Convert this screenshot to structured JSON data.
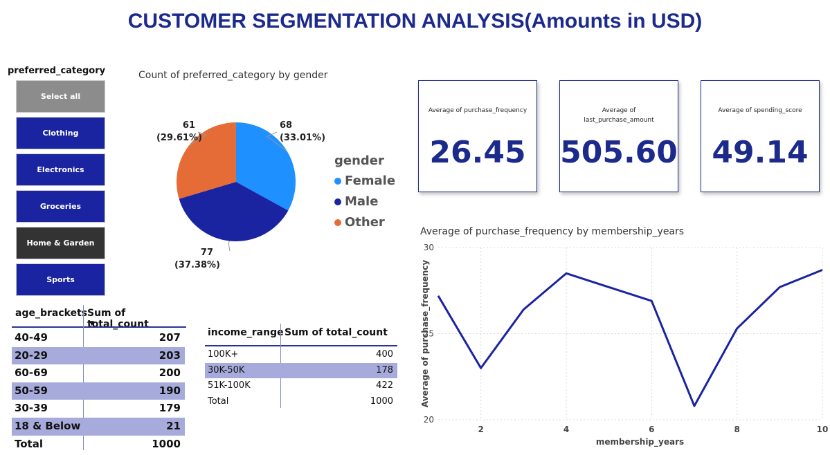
{
  "title": "CUSTOMER SEGMENTATION ANALYSIS(Amounts in USD)",
  "slicer": {
    "title": "preferred_category",
    "items": [
      {
        "label": "Select all",
        "color": "#8c8c8c"
      },
      {
        "label": "Clothing",
        "color": "#1a24a0"
      },
      {
        "label": "Electronics",
        "color": "#1a24a0"
      },
      {
        "label": "Groceries",
        "color": "#1a24a0"
      },
      {
        "label": "Home & Garden",
        "color": "#333333"
      },
      {
        "label": "Sports",
        "color": "#1a24a0"
      }
    ]
  },
  "pie": {
    "title": "Count of preferred_category by gender",
    "legend_title": "gender",
    "labels": [
      {
        "value": "68",
        "pct": "(33.01%)"
      },
      {
        "value": "77",
        "pct": "(37.38%)"
      },
      {
        "value": "61",
        "pct": "(29.61%)"
      }
    ]
  },
  "kpis": [
    {
      "label": "Average of purchase_frequency",
      "value": "26.45"
    },
    {
      "label": "Average of\nlast_purchase_amount",
      "value": "505.60"
    },
    {
      "label": "Average of spending_score",
      "value": "49.14"
    }
  ],
  "age_table": {
    "headers": [
      "age_brackets",
      "Sum of total_count"
    ],
    "rows": [
      [
        "40-49",
        "207"
      ],
      [
        "20-29",
        "203"
      ],
      [
        "60-69",
        "200"
      ],
      [
        "50-59",
        "190"
      ],
      [
        "30-39",
        "179"
      ],
      [
        "18 & Below",
        "21"
      ]
    ],
    "total": [
      "Total",
      "1000"
    ]
  },
  "income_table": {
    "headers": [
      "income_range",
      "Sum of total_count"
    ],
    "rows": [
      [
        "100K+",
        "400"
      ],
      [
        "30K-50K",
        "178"
      ],
      [
        "51K-100K",
        "422"
      ]
    ],
    "total": [
      "Total",
      "1000"
    ]
  },
  "chart_data": [
    {
      "type": "pie",
      "title": "Count of preferred_category by gender",
      "legend_title": "gender",
      "series": [
        {
          "name": "Female",
          "value": 68,
          "percent": 33.01,
          "color": "#1e90ff"
        },
        {
          "name": "Male",
          "value": 77,
          "percent": 37.38,
          "color": "#1a24a0"
        },
        {
          "name": "Other",
          "value": 61,
          "percent": 29.61,
          "color": "#e66c37"
        }
      ]
    },
    {
      "type": "line",
      "title": "Average of purchase_frequency by membership_years",
      "xlabel": "membership_years",
      "ylabel": "Average of purchase_frequency",
      "x": [
        1,
        2,
        3,
        4,
        5,
        6,
        7,
        8,
        9,
        10
      ],
      "series": [
        {
          "values": [
            27.2,
            23.0,
            26.4,
            28.5,
            27.7,
            26.9,
            20.8,
            25.3,
            27.7,
            28.7
          ],
          "color": "#1a24a0"
        }
      ],
      "xlim": [
        1,
        10
      ],
      "ylim": [
        20,
        30
      ],
      "xticks": [
        "2",
        "4",
        "6",
        "8",
        "10"
      ],
      "yticks": [
        "20",
        "25",
        "30"
      ],
      "grid": true
    }
  ]
}
